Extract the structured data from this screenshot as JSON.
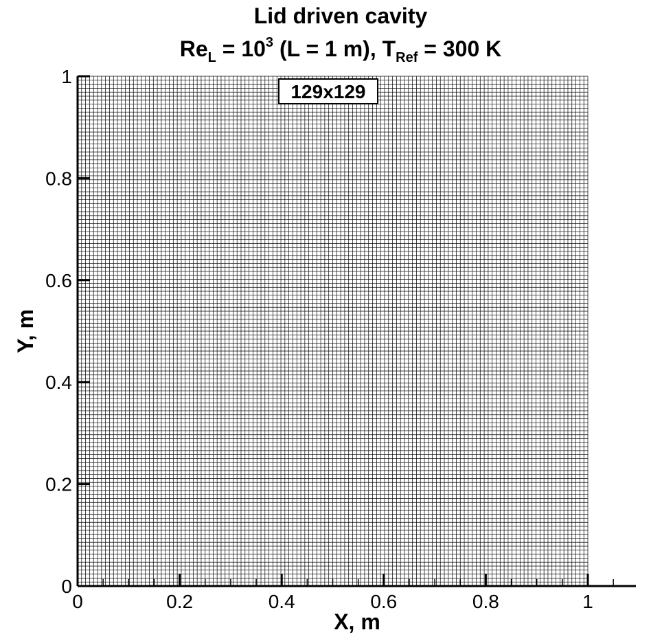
{
  "chart_data": {
    "type": "mesh",
    "title": {
      "line1": "Lid driven cavity",
      "re_base": "Re",
      "re_sub": "L",
      "re_eq": " = 10",
      "re_exp": "3",
      "re_rest": " (L = 1 m), T",
      "t_sub": "Ref",
      "t_rest": " = 300 K"
    },
    "xlabel": "X, m",
    "ylabel": "Y, m",
    "xlim": [
      0,
      1.1
    ],
    "ylim": [
      0,
      1
    ],
    "x_ticks": [
      "0",
      "0.2",
      "0.4",
      "0.6",
      "0.8",
      "1"
    ],
    "y_ticks": [
      "0",
      "0.2",
      "0.4",
      "0.6",
      "0.8",
      "1"
    ],
    "grid_label": "129x129",
    "grid_nodes_x": 129,
    "grid_nodes_y": 129,
    "domain": {
      "x": [
        0,
        1
      ],
      "y": [
        0,
        1
      ]
    },
    "colors": {
      "mesh": "#000000",
      "background": "#ffffff"
    }
  }
}
